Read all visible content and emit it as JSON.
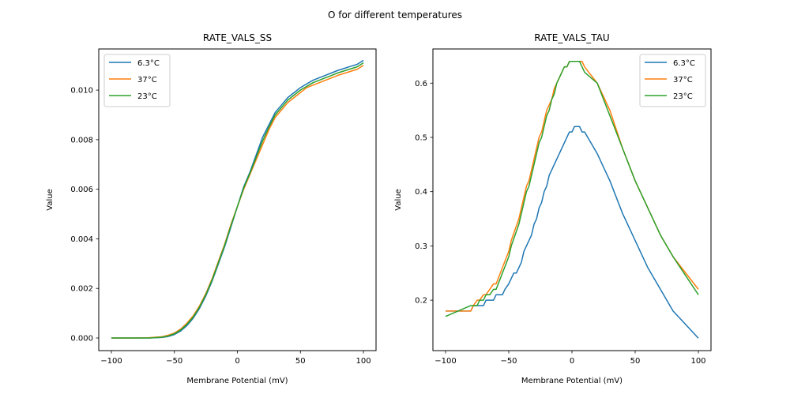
{
  "suptitle": "O for different temperatures",
  "chart_data": [
    {
      "type": "line",
      "title": "RATE_VALS_SS",
      "xlabel": "Membrane Potential (mV)",
      "ylabel": "Value",
      "xlim": [
        -110,
        110
      ],
      "ylim": [
        -0.00051,
        0.01166
      ],
      "xticks": [
        -100,
        -50,
        0,
        50,
        100
      ],
      "xtick_labels": [
        "−100",
        "−50",
        "0",
        "50",
        "100"
      ],
      "yticks": [
        0.0,
        0.002,
        0.004,
        0.006,
        0.008,
        0.01
      ],
      "ytick_labels": [
        "0.000",
        "0.002",
        "0.004",
        "0.006",
        "0.008",
        "0.010"
      ],
      "grid": false,
      "legend": "top-left",
      "x": [
        -100,
        -90,
        -80,
        -70,
        -60,
        -55,
        -50,
        -45,
        -40,
        -35,
        -30,
        -25,
        -20,
        -15,
        -10,
        -5,
        0,
        5,
        10,
        15,
        20,
        25,
        30,
        35,
        40,
        45,
        50,
        55,
        60,
        65,
        70,
        75,
        80,
        85,
        90,
        95,
        100
      ],
      "series": [
        {
          "name": "6.3°C",
          "color": "#1f77b4",
          "values": [
            0.0,
            0.0,
            0.0,
            0.0,
            2e-05,
            6e-05,
            0.00014,
            0.00028,
            0.0005,
            0.0008,
            0.0012,
            0.0017,
            0.0023,
            0.003,
            0.0037,
            0.0045,
            0.0053,
            0.0061,
            0.0067,
            0.0074,
            0.0081,
            0.0086,
            0.0091,
            0.0094,
            0.0097,
            0.0099,
            0.0101,
            0.01025,
            0.0104,
            0.0105,
            0.0106,
            0.0107,
            0.0108,
            0.01088,
            0.01096,
            0.01104,
            0.0112
          ]
        },
        {
          "name": "37°C",
          "color": "#ff7f0e",
          "values": [
            0.0,
            0.0,
            0.0,
            1e-05,
            5e-05,
            0.00011,
            0.0002,
            0.00036,
            0.0006,
            0.0009,
            0.0013,
            0.0018,
            0.0024,
            0.0031,
            0.0038,
            0.0046,
            0.0053,
            0.006,
            0.0066,
            0.0072,
            0.0078,
            0.0084,
            0.0089,
            0.0092,
            0.0095,
            0.0097,
            0.0099,
            0.0101,
            0.0102,
            0.0103,
            0.0104,
            0.0105,
            0.0106,
            0.01068,
            0.01076,
            0.01084,
            0.011
          ]
        },
        {
          "name": "23°C",
          "color": "#2ca02c",
          "values": [
            0.0,
            0.0,
            0.0,
            0.0,
            3e-05,
            8e-05,
            0.00017,
            0.00032,
            0.00055,
            0.00085,
            0.00125,
            0.00175,
            0.00235,
            0.00305,
            0.00375,
            0.00455,
            0.0053,
            0.00605,
            0.00665,
            0.0073,
            0.00795,
            0.0085,
            0.009,
            0.0093,
            0.0096,
            0.0098,
            0.01,
            0.01015,
            0.0103,
            0.0104,
            0.0105,
            0.0106,
            0.0107,
            0.01078,
            0.01086,
            0.01094,
            0.0111
          ]
        }
      ]
    },
    {
      "type": "line",
      "title": "RATE_VALS_TAU",
      "xlabel": "Membrane Potential (mV)",
      "ylabel": "Value",
      "xlim": [
        -110,
        110
      ],
      "ylim": [
        0.107,
        0.663
      ],
      "xticks": [
        -100,
        -50,
        0,
        50,
        100
      ],
      "xtick_labels": [
        "−100",
        "−50",
        "0",
        "50",
        "100"
      ],
      "yticks": [
        0.2,
        0.3,
        0.4,
        0.5,
        0.6
      ],
      "ytick_labels": [
        "0.2",
        "0.3",
        "0.4",
        "0.5",
        "0.6"
      ],
      "grid": false,
      "legend": "top-right",
      "series": [
        {
          "name": "6.3°C",
          "color": "#1f77b4",
          "x": [
            -100,
            -80,
            -78,
            -70,
            -68,
            -62,
            -60,
            -55,
            -53,
            -50,
            -48,
            -46,
            -44,
            -42,
            -40,
            -38,
            -36,
            -34,
            -32,
            -30,
            -28,
            -26,
            -24,
            -22,
            -20,
            -18,
            -16,
            -14,
            -12,
            -10,
            -8,
            -6,
            -4,
            -2,
            0,
            2,
            4,
            6,
            8,
            10,
            20,
            30,
            40,
            50,
            60,
            70,
            80,
            90,
            100
          ],
          "values": [
            0.18,
            0.18,
            0.19,
            0.19,
            0.2,
            0.2,
            0.21,
            0.21,
            0.22,
            0.23,
            0.24,
            0.25,
            0.25,
            0.26,
            0.27,
            0.29,
            0.3,
            0.31,
            0.32,
            0.34,
            0.35,
            0.37,
            0.38,
            0.4,
            0.41,
            0.43,
            0.44,
            0.45,
            0.46,
            0.47,
            0.48,
            0.49,
            0.5,
            0.51,
            0.51,
            0.52,
            0.52,
            0.52,
            0.51,
            0.51,
            0.47,
            0.42,
            0.36,
            0.31,
            0.26,
            0.22,
            0.18,
            0.155,
            0.13
          ]
        },
        {
          "name": "37°C",
          "color": "#ff7f0e",
          "x": [
            -100,
            -85,
            -80,
            -78,
            -75,
            -73,
            -70,
            -68,
            -65,
            -62,
            -60,
            -55,
            -50,
            -48,
            -45,
            -42,
            -40,
            -36,
            -34,
            -32,
            -30,
            -28,
            -26,
            -24,
            -22,
            -20,
            -18,
            -16,
            -14,
            -12,
            -10,
            -8,
            -6,
            -4,
            -2,
            0,
            2,
            4,
            6,
            8,
            10,
            20,
            30,
            40,
            50,
            60,
            70,
            80,
            90,
            100
          ],
          "values": [
            0.18,
            0.18,
            0.18,
            0.19,
            0.2,
            0.2,
            0.21,
            0.21,
            0.22,
            0.23,
            0.23,
            0.26,
            0.29,
            0.31,
            0.33,
            0.35,
            0.37,
            0.41,
            0.42,
            0.44,
            0.46,
            0.48,
            0.5,
            0.51,
            0.53,
            0.55,
            0.56,
            0.57,
            0.59,
            0.6,
            0.61,
            0.62,
            0.63,
            0.63,
            0.64,
            0.64,
            0.64,
            0.64,
            0.64,
            0.64,
            0.63,
            0.6,
            0.55,
            0.48,
            0.42,
            0.37,
            0.32,
            0.28,
            0.25,
            0.22
          ]
        },
        {
          "name": "23°C",
          "color": "#2ca02c",
          "x": [
            -100,
            -80,
            -78,
            -75,
            -73,
            -70,
            -68,
            -65,
            -62,
            -60,
            -55,
            -50,
            -48,
            -45,
            -42,
            -40,
            -38,
            -36,
            -34,
            -32,
            -30,
            -28,
            -26,
            -24,
            -22,
            -20,
            -18,
            -16,
            -14,
            -12,
            -10,
            -8,
            -6,
            -4,
            -2,
            0,
            2,
            4,
            6,
            8,
            10,
            20,
            30,
            40,
            50,
            60,
            70,
            80,
            90,
            100
          ],
          "values": [
            0.17,
            0.19,
            0.19,
            0.19,
            0.2,
            0.2,
            0.21,
            0.21,
            0.22,
            0.22,
            0.25,
            0.28,
            0.3,
            0.32,
            0.34,
            0.36,
            0.38,
            0.4,
            0.41,
            0.43,
            0.45,
            0.47,
            0.49,
            0.5,
            0.52,
            0.54,
            0.55,
            0.57,
            0.58,
            0.6,
            0.61,
            0.62,
            0.63,
            0.63,
            0.64,
            0.64,
            0.64,
            0.64,
            0.64,
            0.63,
            0.62,
            0.6,
            0.54,
            0.48,
            0.42,
            0.37,
            0.32,
            0.28,
            0.245,
            0.21
          ]
        }
      ]
    }
  ]
}
